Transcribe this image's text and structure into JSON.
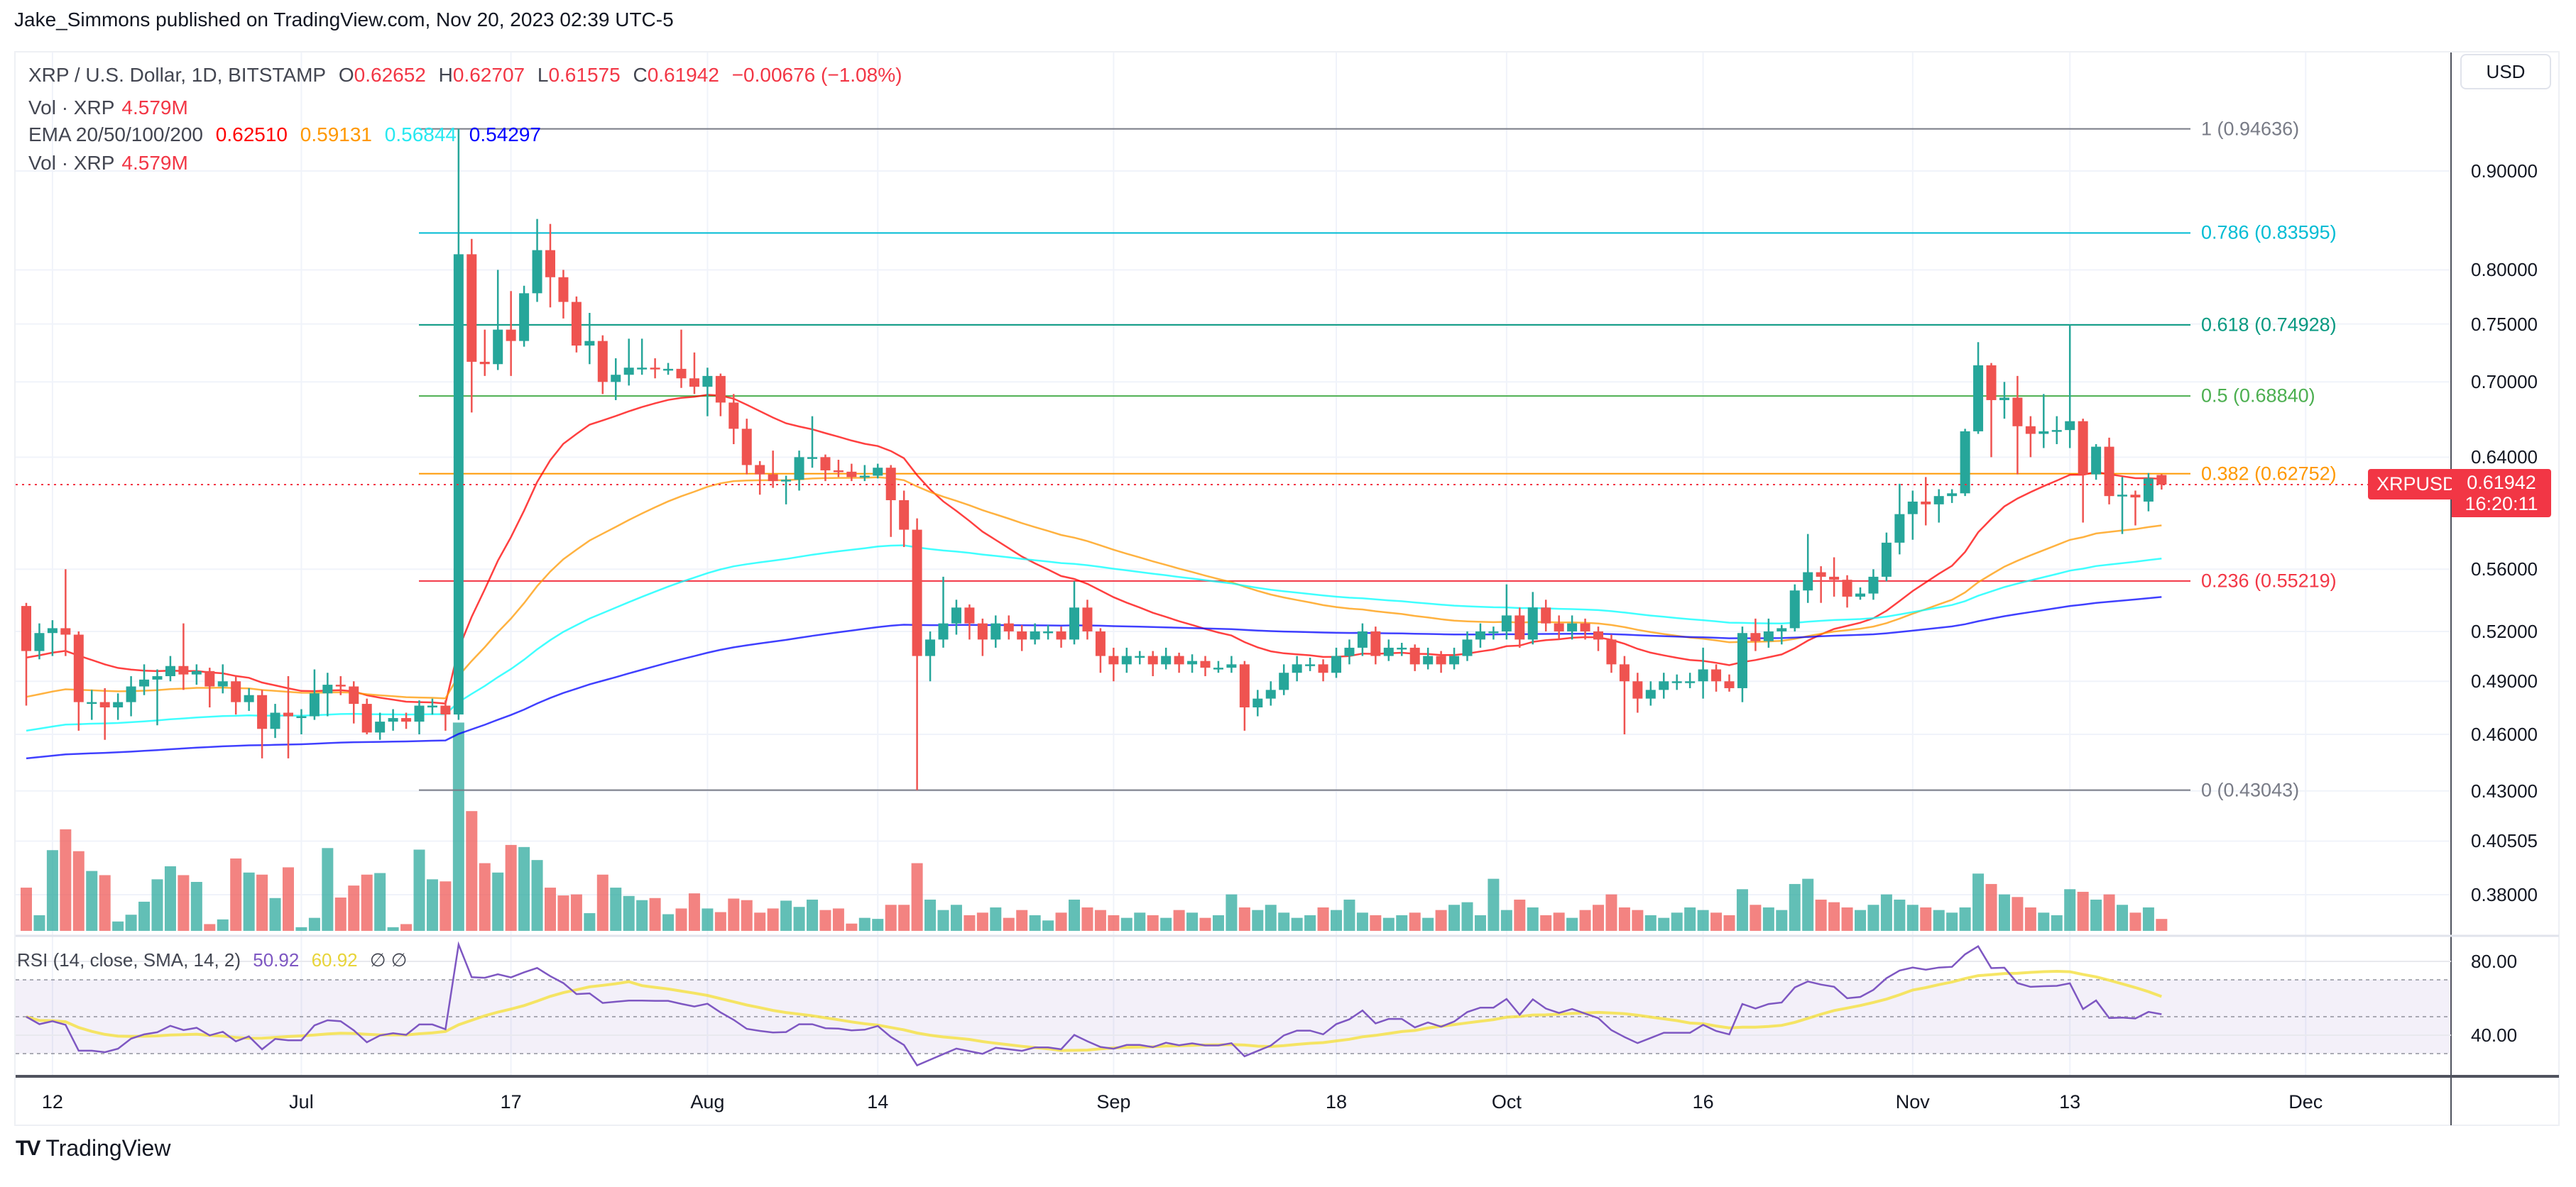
{
  "publisher_line": "Jake_Simmons published on TradingView.com, Nov 20, 2023 02:39 UTC-5",
  "legend": {
    "symbol": "XRP / U.S. Dollar, 1D, BITSTAMP",
    "o_label": "O",
    "o": "0.62652",
    "h_label": "H",
    "h": "0.62707",
    "l_label": "L",
    "l": "0.61575",
    "c_label": "C",
    "c": "0.61942",
    "change": "−0.00676 (−1.08%)",
    "vol_label": "Vol · XRP",
    "vol": "4.579M",
    "ema_label": "EMA 20/50/100/200",
    "ema_values": [
      "0.62510",
      "0.59131",
      "0.56844",
      "0.54297"
    ],
    "vol2_label": "Vol · XRP",
    "vol2": "4.579M"
  },
  "currency_button": "USD",
  "last_price": {
    "symbol": "XRPUSD",
    "price": "0.61942",
    "countdown": "16:20:11",
    "color": "#f23645"
  },
  "rsi_legend": {
    "label": "RSI (14, close, SMA, 14, 2)",
    "rsi": "50.92",
    "sma": "60.92",
    "extra": "∅ ∅"
  },
  "footer": {
    "logo_mark": "TV",
    "brand": "TradingView"
  },
  "colors": {
    "up": "#26a69a",
    "down": "#ef5350",
    "ema20": "#ff0000",
    "ema50": "#ff9800",
    "ema100": "#00ffff",
    "ema200": "#0000ff",
    "rsi": "#7e57c2",
    "rsi_sma": "#f5e24a"
  },
  "chart_data": {
    "type": "candlestick",
    "scale": "log",
    "grid": true,
    "first_date": "2023-06-10",
    "last_date": "2023-11-20",
    "candles_ohlc": [
      [
        0.536,
        0.538,
        0.476,
        0.508
      ],
      [
        0.508,
        0.525,
        0.503,
        0.519
      ],
      [
        0.519,
        0.527,
        0.505,
        0.522
      ],
      [
        0.522,
        0.56,
        0.505,
        0.518
      ],
      [
        0.518,
        0.52,
        0.462,
        0.478
      ],
      [
        0.478,
        0.485,
        0.468,
        0.478
      ],
      [
        0.478,
        0.486,
        0.457,
        0.475
      ],
      [
        0.475,
        0.483,
        0.468,
        0.478
      ],
      [
        0.478,
        0.493,
        0.47,
        0.487
      ],
      [
        0.487,
        0.5,
        0.482,
        0.491
      ],
      [
        0.491,
        0.497,
        0.465,
        0.493
      ],
      [
        0.493,
        0.505,
        0.49,
        0.499
      ],
      [
        0.499,
        0.525,
        0.485,
        0.494
      ],
      [
        0.494,
        0.5,
        0.488,
        0.496
      ],
      [
        0.496,
        0.498,
        0.475,
        0.487
      ],
      [
        0.487,
        0.5,
        0.483,
        0.49
      ],
      [
        0.49,
        0.493,
        0.471,
        0.478
      ],
      [
        0.478,
        0.486,
        0.473,
        0.482
      ],
      [
        0.482,
        0.485,
        0.447,
        0.463
      ],
      [
        0.463,
        0.477,
        0.458,
        0.472
      ],
      [
        0.472,
        0.493,
        0.447,
        0.47
      ],
      [
        0.47,
        0.474,
        0.46,
        0.47
      ],
      [
        0.47,
        0.497,
        0.468,
        0.483
      ],
      [
        0.483,
        0.495,
        0.47,
        0.488
      ],
      [
        0.488,
        0.493,
        0.482,
        0.487
      ],
      [
        0.487,
        0.49,
        0.466,
        0.477
      ],
      [
        0.477,
        0.48,
        0.46,
        0.461
      ],
      [
        0.461,
        0.472,
        0.457,
        0.467
      ],
      [
        0.467,
        0.474,
        0.462,
        0.469
      ],
      [
        0.469,
        0.472,
        0.463,
        0.467
      ],
      [
        0.467,
        0.479,
        0.46,
        0.476
      ],
      [
        0.476,
        0.48,
        0.471,
        0.476
      ],
      [
        0.476,
        0.479,
        0.462,
        0.471
      ],
      [
        0.471,
        0.94636,
        0.468,
        0.815
      ],
      [
        0.815,
        0.83,
        0.675,
        0.717
      ],
      [
        0.717,
        0.745,
        0.705,
        0.715
      ],
      [
        0.715,
        0.8,
        0.71,
        0.745
      ],
      [
        0.745,
        0.78,
        0.705,
        0.735
      ],
      [
        0.735,
        0.785,
        0.73,
        0.778
      ],
      [
        0.778,
        0.85,
        0.77,
        0.819
      ],
      [
        0.819,
        0.845,
        0.765,
        0.793
      ],
      [
        0.793,
        0.8,
        0.755,
        0.77
      ],
      [
        0.77,
        0.775,
        0.725,
        0.731
      ],
      [
        0.731,
        0.76,
        0.715,
        0.735
      ],
      [
        0.735,
        0.74,
        0.69,
        0.7
      ],
      [
        0.7,
        0.72,
        0.685,
        0.706
      ],
      [
        0.706,
        0.737,
        0.697,
        0.712
      ],
      [
        0.712,
        0.737,
        0.706,
        0.712
      ],
      [
        0.712,
        0.72,
        0.703,
        0.711
      ],
      [
        0.711,
        0.716,
        0.706,
        0.711
      ],
      [
        0.711,
        0.745,
        0.695,
        0.703
      ],
      [
        0.703,
        0.725,
        0.69,
        0.696
      ],
      [
        0.696,
        0.712,
        0.672,
        0.705
      ],
      [
        0.705,
        0.707,
        0.672,
        0.683
      ],
      [
        0.683,
        0.69,
        0.65,
        0.662
      ],
      [
        0.662,
        0.67,
        0.627,
        0.634
      ],
      [
        0.634,
        0.637,
        0.612,
        0.627
      ],
      [
        0.627,
        0.645,
        0.617,
        0.622
      ],
      [
        0.622,
        0.626,
        0.605,
        0.623
      ],
      [
        0.623,
        0.645,
        0.615,
        0.64
      ],
      [
        0.64,
        0.672,
        0.632,
        0.64
      ],
      [
        0.64,
        0.642,
        0.622,
        0.63
      ],
      [
        0.63,
        0.638,
        0.625,
        0.629
      ],
      [
        0.629,
        0.635,
        0.622,
        0.625
      ],
      [
        0.625,
        0.634,
        0.622,
        0.626
      ],
      [
        0.626,
        0.635,
        0.624,
        0.632
      ],
      [
        0.632,
        0.634,
        0.582,
        0.608
      ],
      [
        0.608,
        0.615,
        0.575,
        0.587
      ],
      [
        0.587,
        0.595,
        0.43043,
        0.505
      ],
      [
        0.505,
        0.52,
        0.49,
        0.515
      ],
      [
        0.515,
        0.555,
        0.51,
        0.525
      ],
      [
        0.525,
        0.54,
        0.518,
        0.535
      ],
      [
        0.535,
        0.537,
        0.515,
        0.525
      ],
      [
        0.525,
        0.528,
        0.505,
        0.515
      ],
      [
        0.515,
        0.53,
        0.51,
        0.525
      ],
      [
        0.525,
        0.53,
        0.515,
        0.52
      ],
      [
        0.52,
        0.524,
        0.508,
        0.515
      ],
      [
        0.515,
        0.525,
        0.512,
        0.52
      ],
      [
        0.52,
        0.524,
        0.515,
        0.52
      ],
      [
        0.52,
        0.523,
        0.51,
        0.515
      ],
      [
        0.515,
        0.552,
        0.512,
        0.535
      ],
      [
        0.535,
        0.54,
        0.515,
        0.52
      ],
      [
        0.52,
        0.522,
        0.495,
        0.505
      ],
      [
        0.505,
        0.51,
        0.49,
        0.5
      ],
      [
        0.5,
        0.51,
        0.495,
        0.505
      ],
      [
        0.505,
        0.508,
        0.5,
        0.505
      ],
      [
        0.505,
        0.508,
        0.493,
        0.5
      ],
      [
        0.5,
        0.51,
        0.497,
        0.505
      ],
      [
        0.505,
        0.507,
        0.495,
        0.5
      ],
      [
        0.5,
        0.506,
        0.495,
        0.502
      ],
      [
        0.502,
        0.505,
        0.493,
        0.498
      ],
      [
        0.498,
        0.502,
        0.495,
        0.498
      ],
      [
        0.498,
        0.505,
        0.495,
        0.5
      ],
      [
        0.5,
        0.502,
        0.462,
        0.475
      ],
      [
        0.475,
        0.485,
        0.47,
        0.48
      ],
      [
        0.48,
        0.49,
        0.476,
        0.485
      ],
      [
        0.485,
        0.5,
        0.482,
        0.495
      ],
      [
        0.495,
        0.505,
        0.49,
        0.5
      ],
      [
        0.5,
        0.504,
        0.496,
        0.5
      ],
      [
        0.5,
        0.503,
        0.49,
        0.495
      ],
      [
        0.495,
        0.51,
        0.492,
        0.505
      ],
      [
        0.505,
        0.515,
        0.5,
        0.51
      ],
      [
        0.51,
        0.525,
        0.505,
        0.52
      ],
      [
        0.52,
        0.523,
        0.5,
        0.505
      ],
      [
        0.505,
        0.515,
        0.502,
        0.51
      ],
      [
        0.51,
        0.513,
        0.505,
        0.51
      ],
      [
        0.51,
        0.512,
        0.496,
        0.5
      ],
      [
        0.5,
        0.51,
        0.497,
        0.505
      ],
      [
        0.505,
        0.508,
        0.495,
        0.5
      ],
      [
        0.5,
        0.51,
        0.497,
        0.505
      ],
      [
        0.505,
        0.52,
        0.502,
        0.515
      ],
      [
        0.515,
        0.525,
        0.51,
        0.52
      ],
      [
        0.52,
        0.523,
        0.515,
        0.52
      ],
      [
        0.52,
        0.55,
        0.515,
        0.53
      ],
      [
        0.53,
        0.535,
        0.51,
        0.515
      ],
      [
        0.515,
        0.545,
        0.512,
        0.535
      ],
      [
        0.535,
        0.54,
        0.52,
        0.525
      ],
      [
        0.525,
        0.53,
        0.515,
        0.52
      ],
      [
        0.52,
        0.53,
        0.515,
        0.525
      ],
      [
        0.525,
        0.528,
        0.515,
        0.52
      ],
      [
        0.52,
        0.523,
        0.508,
        0.515
      ],
      [
        0.515,
        0.518,
        0.495,
        0.5
      ],
      [
        0.5,
        0.505,
        0.46,
        0.49
      ],
      [
        0.49,
        0.495,
        0.472,
        0.48
      ],
      [
        0.48,
        0.49,
        0.476,
        0.485
      ],
      [
        0.485,
        0.495,
        0.48,
        0.49
      ],
      [
        0.49,
        0.494,
        0.485,
        0.49
      ],
      [
        0.49,
        0.495,
        0.486,
        0.49
      ],
      [
        0.49,
        0.51,
        0.48,
        0.497
      ],
      [
        0.497,
        0.5,
        0.484,
        0.49
      ],
      [
        0.49,
        0.494,
        0.484,
        0.486
      ],
      [
        0.486,
        0.523,
        0.478,
        0.519
      ],
      [
        0.519,
        0.528,
        0.508,
        0.514
      ],
      [
        0.514,
        0.528,
        0.51,
        0.52
      ],
      [
        0.52,
        0.524,
        0.512,
        0.522
      ],
      [
        0.522,
        0.55,
        0.52,
        0.546
      ],
      [
        0.546,
        0.584,
        0.538,
        0.558
      ],
      [
        0.558,
        0.562,
        0.538,
        0.555
      ],
      [
        0.555,
        0.568,
        0.542,
        0.553
      ],
      [
        0.553,
        0.556,
        0.535,
        0.542
      ],
      [
        0.542,
        0.548,
        0.54,
        0.544
      ],
      [
        0.544,
        0.56,
        0.54,
        0.555
      ],
      [
        0.555,
        0.585,
        0.552,
        0.578
      ],
      [
        0.578,
        0.62,
        0.57,
        0.598
      ],
      [
        0.598,
        0.615,
        0.58,
        0.607
      ],
      [
        0.607,
        0.625,
        0.59,
        0.605
      ],
      [
        0.605,
        0.616,
        0.592,
        0.611
      ],
      [
        0.611,
        0.616,
        0.606,
        0.613
      ],
      [
        0.613,
        0.662,
        0.611,
        0.66
      ],
      [
        0.66,
        0.734,
        0.658,
        0.714
      ],
      [
        0.714,
        0.716,
        0.64,
        0.685
      ],
      [
        0.685,
        0.7,
        0.67,
        0.687
      ],
      [
        0.687,
        0.705,
        0.627,
        0.664
      ],
      [
        0.664,
        0.672,
        0.64,
        0.658
      ],
      [
        0.658,
        0.69,
        0.647,
        0.66
      ],
      [
        0.66,
        0.672,
        0.65,
        0.661
      ],
      [
        0.661,
        0.74928,
        0.647,
        0.668
      ],
      [
        0.668,
        0.67,
        0.592,
        0.627
      ],
      [
        0.627,
        0.65,
        0.623,
        0.648
      ],
      [
        0.648,
        0.655,
        0.605,
        0.611
      ],
      [
        0.611,
        0.625,
        0.584,
        0.612
      ],
      [
        0.612,
        0.615,
        0.59,
        0.61
      ],
      [
        0.607,
        0.628,
        0.6,
        0.624
      ],
      [
        0.62652,
        0.62707,
        0.61575,
        0.61942
      ]
    ],
    "volume_millions": [
      16.6,
      6,
      31,
      39,
      30.6,
      23,
      21.4,
      3.6,
      6.2,
      11.2,
      19.8,
      24.8,
      21.4,
      18.8,
      2.6,
      4.4,
      27.8,
      22.4,
      21.6,
      12.6,
      24.4,
      1.4,
      5,
      31.8,
      12.8,
      17.4,
      21.6,
      22.2,
      1.4,
      2.6,
      31.2,
      19.8,
      19,
      80,
      46,
      26,
      22.4,
      33,
      32.2,
      27.2,
      16.6,
      13.6,
      14,
      6.8,
      21.6,
      16.6,
      13.4,
      11.8,
      12.6,
      6.4,
      8.6,
      14.4,
      8.6,
      7.2,
      12.4,
      11.8,
      7,
      8.6,
      11.6,
      9.2,
      12,
      8,
      8.6,
      2.8,
      5,
      4.6,
      10,
      10,
      26,
      12,
      8,
      10,
      6,
      7,
      9,
      5,
      8,
      6,
      4,
      7,
      12,
      9,
      8,
      6,
      5,
      7,
      6,
      5,
      8,
      7,
      5,
      6,
      14,
      9,
      8,
      10,
      7,
      5,
      6,
      9,
      8,
      12,
      7,
      6,
      5,
      6,
      7,
      5,
      8,
      10,
      11,
      6,
      20,
      8,
      12,
      9,
      6,
      7,
      5,
      8,
      10,
      14,
      9,
      8,
      6,
      5,
      7,
      9,
      8,
      7,
      6,
      16,
      10,
      9,
      8,
      18,
      20,
      12,
      11,
      9,
      8,
      10,
      14,
      12,
      10,
      9,
      8,
      7,
      9,
      22,
      18,
      14,
      13,
      9,
      7,
      6,
      16,
      15,
      12,
      14,
      10,
      7,
      9,
      4.579
    ],
    "ema_periods": [
      20,
      50,
      100,
      200
    ],
    "ema_start": [
      0.504,
      0.481,
      0.462,
      0.447
    ],
    "ema_last": [
      0.6251,
      0.59131,
      0.56844,
      0.54297
    ],
    "rsi_period": 14,
    "rsi_sma_period": 14,
    "rsi_last": 50.92,
    "rsi_sma_last": 60.92,
    "rsi_levels": [
      70,
      50,
      30
    ],
    "rsi_ticks": [
      {
        "value": 80,
        "label": "80.00"
      },
      {
        "value": 40,
        "label": "40.00"
      }
    ],
    "price_ticks": [
      {
        "value": 0.9,
        "label": "0.90000"
      },
      {
        "value": 0.8,
        "label": "0.80000"
      },
      {
        "value": 0.75,
        "label": "0.75000"
      },
      {
        "value": 0.7,
        "label": "0.70000"
      },
      {
        "value": 0.64,
        "label": "0.64000"
      },
      {
        "value": 0.56,
        "label": "0.56000"
      },
      {
        "value": 0.52,
        "label": "0.52000"
      },
      {
        "value": 0.49,
        "label": "0.49000"
      },
      {
        "value": 0.46,
        "label": "0.46000"
      },
      {
        "value": 0.43,
        "label": "0.43000"
      },
      {
        "value": 0.40505,
        "label": "0.40505"
      },
      {
        "value": 0.38,
        "label": "0.38000"
      }
    ],
    "time_ticks": [
      {
        "date": "2023-06-12",
        "label": "12"
      },
      {
        "date": "2023-07-01",
        "label": "Jul"
      },
      {
        "date": "2023-07-17",
        "label": "17"
      },
      {
        "date": "2023-08-01",
        "label": "Aug"
      },
      {
        "date": "2023-08-14",
        "label": "14"
      },
      {
        "date": "2023-09-01",
        "label": "Sep"
      },
      {
        "date": "2023-09-18",
        "label": "18"
      },
      {
        "date": "2023-10-01",
        "label": "Oct"
      },
      {
        "date": "2023-10-16",
        "label": "16"
      },
      {
        "date": "2023-11-01",
        "label": "Nov"
      },
      {
        "date": "2023-11-13",
        "label": "13"
      },
      {
        "date": "2023-12-01",
        "label": "Dec"
      }
    ],
    "fib_levels": [
      {
        "ratio": 1,
        "price": 0.94636,
        "label": "1 (0.94636)",
        "color": "#787b86"
      },
      {
        "ratio": 0.786,
        "price": 0.83595,
        "label": "0.786 (0.83595)",
        "color": "#00bcd4"
      },
      {
        "ratio": 0.618,
        "price": 0.74928,
        "label": "0.618 (0.74928)",
        "color": "#089981"
      },
      {
        "ratio": 0.5,
        "price": 0.6884,
        "label": "0.5 (0.68840)",
        "color": "#4caf50"
      },
      {
        "ratio": 0.382,
        "price": 0.62752,
        "label": "0.382 (0.62752)",
        "color": "#ff9800"
      },
      {
        "ratio": 0.236,
        "price": 0.55219,
        "label": "0.236 (0.55219)",
        "color": "#f23645"
      },
      {
        "ratio": 0,
        "price": 0.43043,
        "label": "0 (0.43043)",
        "color": "#787b86"
      }
    ]
  }
}
